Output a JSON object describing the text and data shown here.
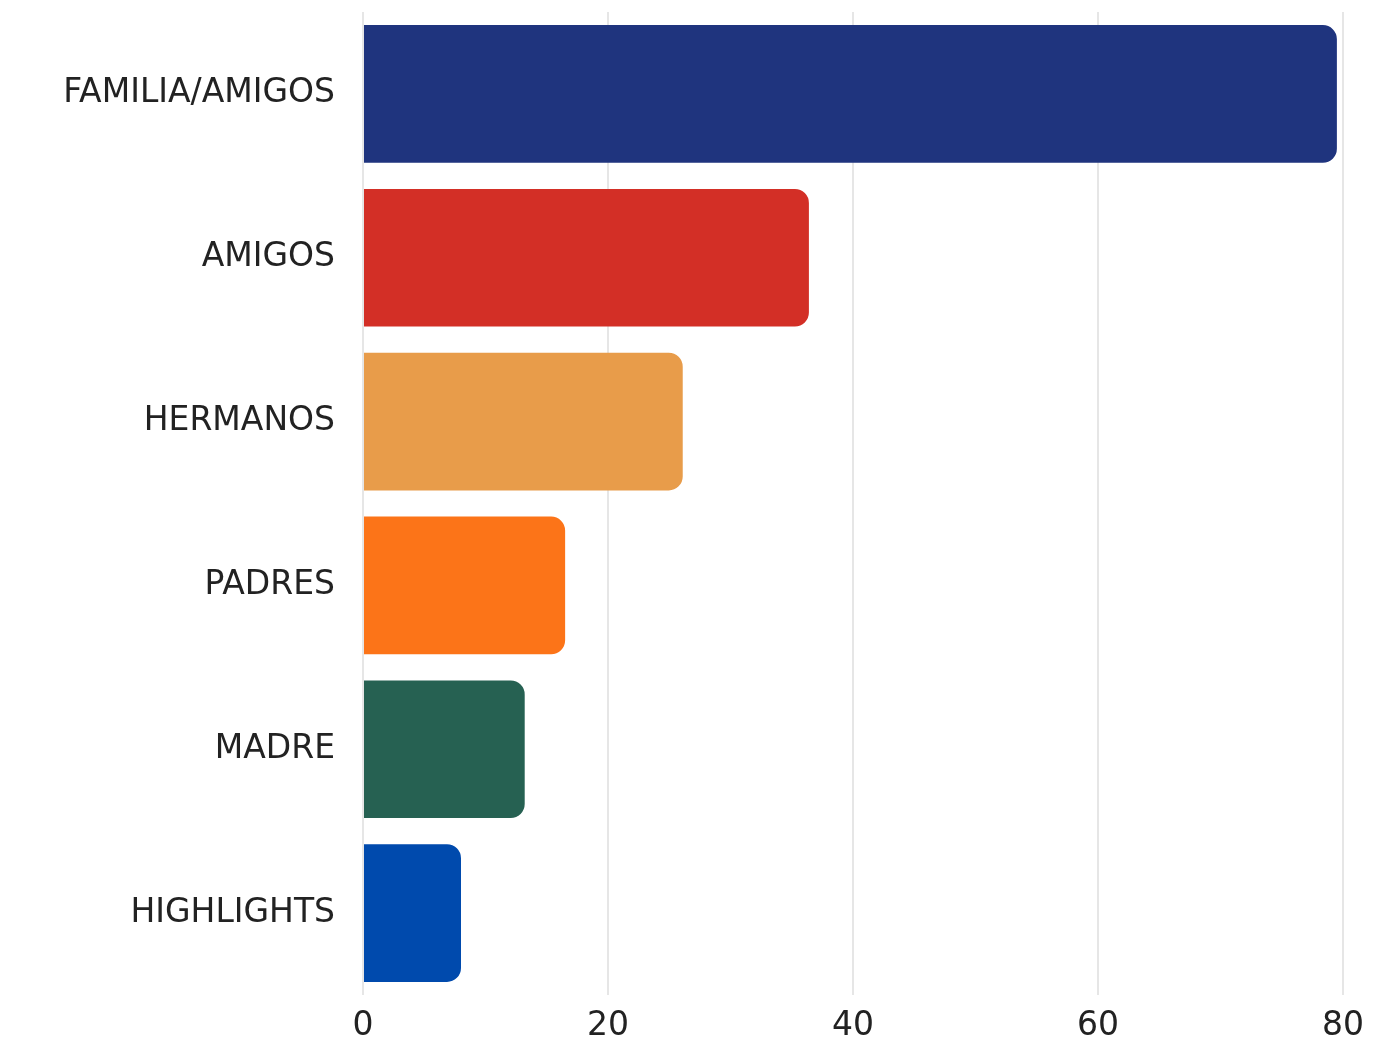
{
  "chart_data": {
    "type": "bar",
    "orientation": "horizontal",
    "categories": [
      "FAMILIA/AMIGOS",
      "AMIGOS",
      "HERMANOS",
      "PADRES",
      "MADRE",
      "HIGHLIGHTS"
    ],
    "values": [
      79.5,
      36.4,
      26.1,
      16.5,
      13.2,
      8.0
    ],
    "colors": [
      "#1f347e",
      "#d32f26",
      "#e89c4a",
      "#fc7418",
      "#266152",
      "#004aad"
    ],
    "xlim": [
      0,
      80
    ],
    "xticks": [
      0,
      20,
      40,
      60,
      80
    ],
    "grid": "x",
    "legend": false
  }
}
